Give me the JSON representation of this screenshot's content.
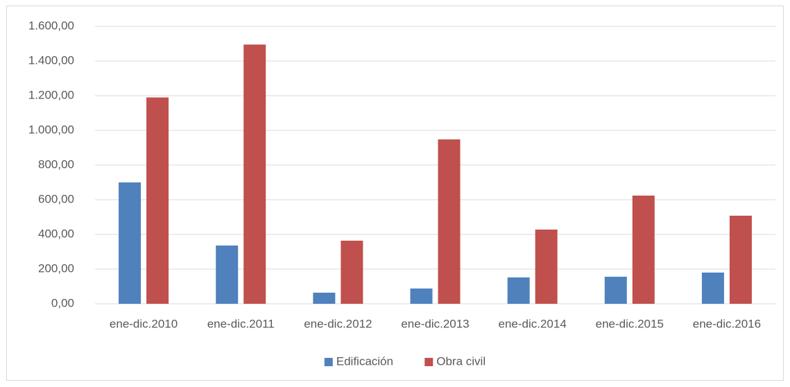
{
  "chart_data": {
    "type": "bar",
    "categories": [
      "ene-dic.2010",
      "ene-dic.2011",
      "ene-dic.2012",
      "ene-dic.2013",
      "ene-dic.2014",
      "ene-dic.2015",
      "ene-dic.2016"
    ],
    "series": [
      {
        "name": "Edificación",
        "color": "#4f81bd",
        "values": [
          700,
          336,
          64,
          88,
          152,
          156,
          180
        ]
      },
      {
        "name": "Obra civil",
        "color": "#c0504d",
        "values": [
          1190,
          1495,
          364,
          948,
          428,
          624,
          508
        ]
      }
    ],
    "ylim": [
      0,
      1600
    ],
    "yticks": [
      {
        "value": 0,
        "label": "0,00"
      },
      {
        "value": 200,
        "label": "200,00"
      },
      {
        "value": 400,
        "label": "400,00"
      },
      {
        "value": 600,
        "label": "600,00"
      },
      {
        "value": 800,
        "label": "800,00"
      },
      {
        "value": 1000,
        "label": "1.000,00"
      },
      {
        "value": 1200,
        "label": "1.200,00"
      },
      {
        "value": 1400,
        "label": "1.400,00"
      },
      {
        "value": 1600,
        "label": "1.600,00"
      }
    ],
    "grid": true,
    "legend": "bottom"
  }
}
